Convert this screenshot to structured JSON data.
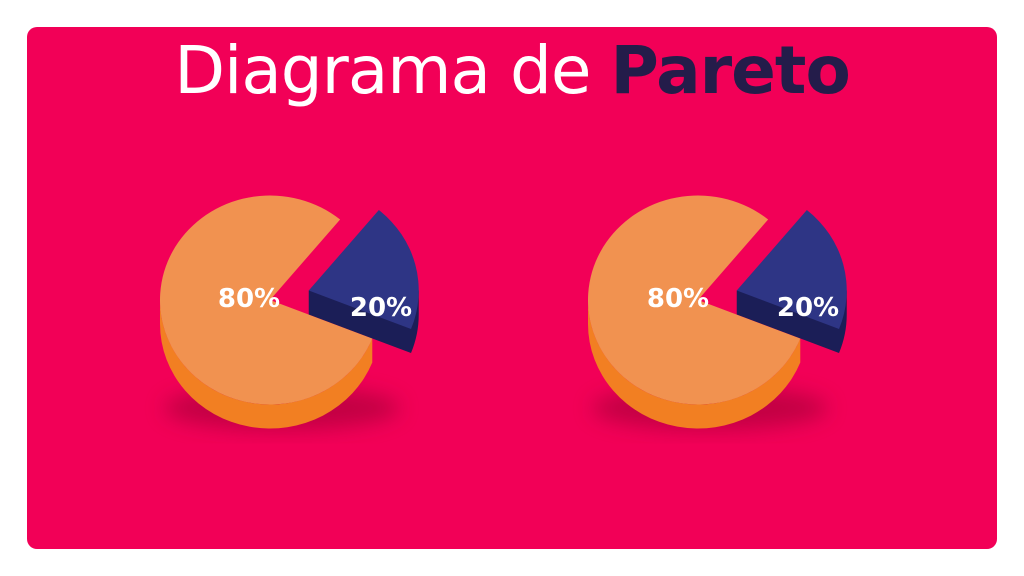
{
  "title": {
    "text_plain": "Diagrama de",
    "text_accent": "Pareto"
  },
  "colors": {
    "background": "#f20057",
    "title_accent": "#241c4a",
    "major_top": "#f19250",
    "major_side": "#f27f22",
    "minor_top": "#2e3585",
    "minor_side": "#1b1e57"
  },
  "chart_data": [
    {
      "type": "pie",
      "style": "3d-exploded",
      "title": "",
      "slices": [
        {
          "label": "80%",
          "value": 80
        },
        {
          "label": "20%",
          "value": 20
        }
      ]
    },
    {
      "type": "pie",
      "style": "3d-exploded",
      "title": "",
      "slices": [
        {
          "label": "80%",
          "value": 80
        },
        {
          "label": "20%",
          "value": 20
        }
      ]
    }
  ]
}
